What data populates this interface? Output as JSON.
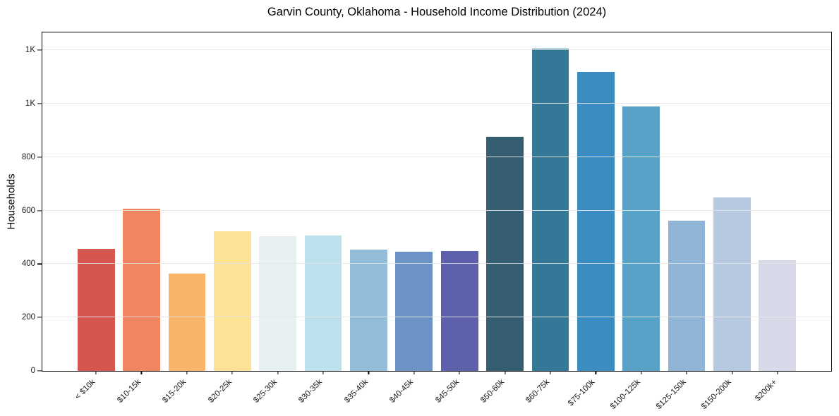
{
  "figure": {
    "title": "Garvin County, Oklahoma - Household Income Distribution (2024)",
    "ylabel": "Households"
  },
  "chart_data": {
    "type": "bar",
    "title": "Garvin County, Oklahoma - Household Income Distribution (2024)",
    "xlabel": "",
    "ylabel": "Households",
    "categories": [
      "< $10k",
      "$10-15k",
      "$15-20k",
      "$20-25k",
      "$25-30k",
      "$30-35k",
      "$35-40k",
      "$40-45k",
      "$45-50k",
      "$50-60k",
      "$60-75k",
      "$75-100k",
      "$100-125k",
      "$125-150k",
      "$150-200k",
      "$200k+"
    ],
    "values": [
      457,
      607,
      363,
      522,
      505,
      506,
      453,
      446,
      449,
      876,
      1205,
      1118,
      988,
      562,
      648,
      415
    ],
    "bar_colors": [
      "#d4564f",
      "#f0855f",
      "#f9b469",
      "#fde296",
      "#e7f1f4",
      "#bce1ed",
      "#92bcd8",
      "#6b93c5",
      "#5d61ac",
      "#365e71",
      "#337897",
      "#3a8cc1",
      "#57a2c6",
      "#90b4d5",
      "#b7c8e1",
      "#d8d9e8"
    ],
    "ylim": [
      0,
      1266
    ],
    "yticks": [
      0,
      200,
      400,
      600,
      800,
      1000,
      1200
    ],
    "ytick_labels": [
      "0",
      "200",
      "400",
      "600",
      "800",
      "1K",
      "1K"
    ],
    "x_tick_rotation_deg": 45,
    "grid": "horizontal",
    "legend": "none"
  },
  "colors": {
    "background": "#ffffff",
    "spine": "#000000",
    "gridline": "#e5e5e5",
    "text": "#1a1a1a"
  }
}
